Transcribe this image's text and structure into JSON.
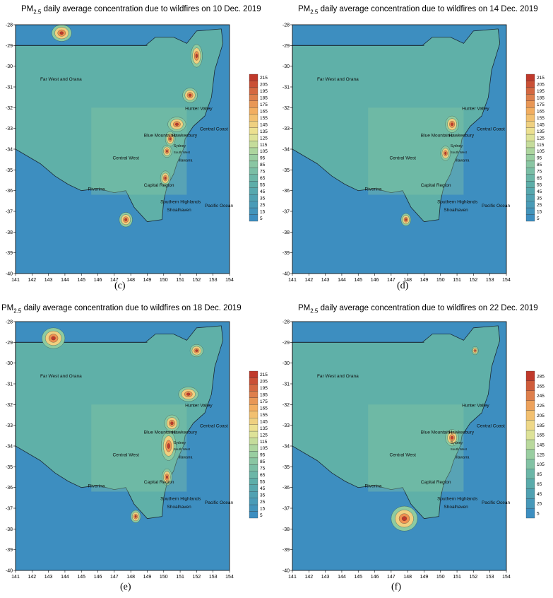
{
  "labels": {
    "far_west": "Far West and Orana",
    "hunter": "Hunter Valley",
    "central_coast": "Central Coast",
    "blue_mtns": "Blue Mountains",
    "hawkesbury": "Hawkesbury",
    "sydney": "Sydney",
    "south_west": "South West",
    "illawarra": "Illawarra",
    "central_west": "Central West",
    "capital": "Capital Region",
    "riverina": "Riverina",
    "southern_highlands": "Southern Highlands",
    "shoalhaven": "Shoalhaven",
    "pacific": "Pacific Ocean"
  },
  "colors": {
    "ocean": "#3d8ec0",
    "land_low": "#5fb0a8",
    "mid": "#8dcba0",
    "high": "#f0d080",
    "peak": "#c0392b",
    "outline": "#1b2a35"
  },
  "chart_data": [
    {
      "type": "heatmap",
      "title_prefix": "PM",
      "title_sub": "2.5",
      "title_suffix": " daily average concentration due to wildfires on 10 Dec. 2019",
      "caption": "(c)",
      "x_ticks": [
        "141",
        "142",
        "143",
        "144",
        "145",
        "146",
        "147",
        "148",
        "149",
        "150",
        "151",
        "152",
        "153",
        "154"
      ],
      "y_ticks": [
        "-28",
        "-29",
        "-30",
        "-31",
        "-32",
        "-33",
        "-34",
        "-35",
        "-36",
        "-37",
        "-38",
        "-39",
        "-40"
      ],
      "xlim": [
        141,
        154
      ],
      "ylim": [
        -40,
        -28
      ],
      "legend_levels": [
        "215",
        "205",
        "195",
        "185",
        "175",
        "165",
        "155",
        "145",
        "135",
        "125",
        "115",
        "105",
        "95",
        "85",
        "75",
        "65",
        "55",
        "45",
        "35",
        "25",
        "15",
        "5"
      ]
    },
    {
      "type": "heatmap",
      "title_prefix": "PM",
      "title_sub": "2.5",
      "title_suffix": " daily average concentration due to wildfires on 14 Dec. 2019",
      "caption": "(d)",
      "x_ticks": [
        "141",
        "142",
        "143",
        "144",
        "145",
        "146",
        "147",
        "148",
        "149",
        "150",
        "151",
        "152",
        "153",
        "154"
      ],
      "y_ticks": [
        "-28",
        "-29",
        "-30",
        "-31",
        "-32",
        "-33",
        "-34",
        "-35",
        "-36",
        "-37",
        "-38",
        "-39",
        "-40"
      ],
      "xlim": [
        141,
        154
      ],
      "ylim": [
        -40,
        -28
      ],
      "legend_levels": [
        "215",
        "205",
        "195",
        "185",
        "175",
        "165",
        "155",
        "145",
        "135",
        "125",
        "115",
        "105",
        "95",
        "85",
        "75",
        "65",
        "55",
        "45",
        "35",
        "25",
        "15",
        "5"
      ]
    },
    {
      "type": "heatmap",
      "title_prefix": "PM",
      "title_sub": "2.5",
      "title_suffix": " daily average concentration due to wildfires on 18 Dec. 2019",
      "caption": "(e)",
      "x_ticks": [
        "141",
        "142",
        "143",
        "144",
        "145",
        "146",
        "147",
        "148",
        "149",
        "150",
        "151",
        "152",
        "153",
        "154"
      ],
      "y_ticks": [
        "-28",
        "-29",
        "-30",
        "-31",
        "-32",
        "-33",
        "-34",
        "-35",
        "-36",
        "-37",
        "-38",
        "-39",
        "-40"
      ],
      "xlim": [
        141,
        154
      ],
      "ylim": [
        -40,
        -28
      ],
      "legend_levels": [
        "215",
        "205",
        "195",
        "185",
        "175",
        "165",
        "155",
        "145",
        "135",
        "125",
        "115",
        "105",
        "95",
        "85",
        "75",
        "65",
        "55",
        "45",
        "35",
        "25",
        "15",
        "5"
      ]
    },
    {
      "type": "heatmap",
      "title_prefix": "PM",
      "title_sub": "2.5",
      "title_suffix": " daily average concentration due to wildfires on 22 Dec. 2019",
      "caption": "(f)",
      "x_ticks": [
        "141",
        "142",
        "143",
        "144",
        "145",
        "146",
        "147",
        "148",
        "149",
        "150",
        "151",
        "152",
        "153",
        "154"
      ],
      "y_ticks": [
        "-28",
        "-29",
        "-30",
        "-31",
        "-32",
        "-33",
        "-34",
        "-35",
        "-36",
        "-37",
        "-38",
        "-39",
        "-40"
      ],
      "xlim": [
        141,
        154
      ],
      "ylim": [
        -40,
        -28
      ],
      "legend_levels": [
        "285",
        "265",
        "245",
        "225",
        "205",
        "185",
        "165",
        "145",
        "125",
        "105",
        "85",
        "65",
        "45",
        "25",
        "5"
      ]
    }
  ]
}
